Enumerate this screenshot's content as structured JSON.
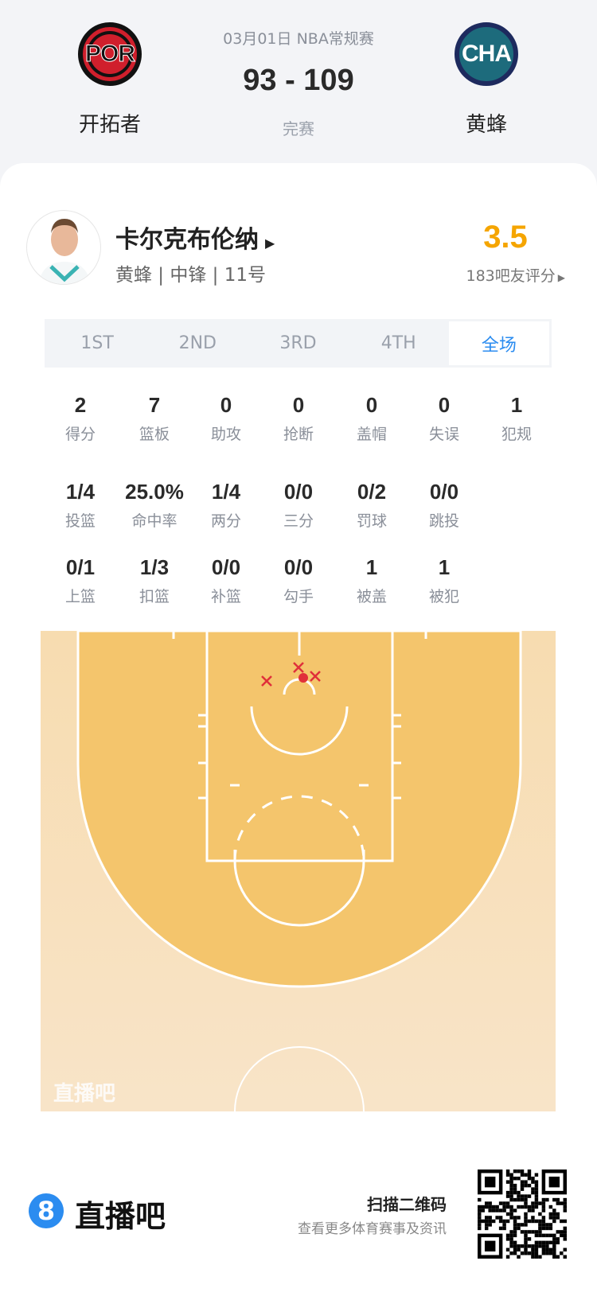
{
  "match": {
    "date_league": "03月01日 NBA常规赛",
    "score": "93 - 109",
    "status": "完赛",
    "home": {
      "abbr": "POR",
      "name": "开拓者"
    },
    "away": {
      "abbr": "CHA",
      "name": "黄蜂"
    }
  },
  "player": {
    "name": "卡尔克布伦纳",
    "info": "黄蜂 | 中锋 | 11号",
    "rating": "3.5",
    "rating_count": "183吧友评分"
  },
  "tabs": [
    {
      "label": "1ST"
    },
    {
      "label": "2ND"
    },
    {
      "label": "3RD"
    },
    {
      "label": "4TH"
    },
    {
      "label": "全场",
      "active": true
    }
  ],
  "stats": [
    [
      {
        "v": "2",
        "l": "得分"
      },
      {
        "v": "7",
        "l": "篮板"
      },
      {
        "v": "0",
        "l": "助攻"
      },
      {
        "v": "0",
        "l": "抢断"
      },
      {
        "v": "0",
        "l": "盖帽"
      },
      {
        "v": "0",
        "l": "失误"
      },
      {
        "v": "1",
        "l": "犯规"
      }
    ],
    [
      {
        "v": "1/4",
        "l": "投篮"
      },
      {
        "v": "25.0%",
        "l": "命中率"
      },
      {
        "v": "1/4",
        "l": "两分"
      },
      {
        "v": "0/0",
        "l": "三分"
      },
      {
        "v": "0/2",
        "l": "罚球"
      },
      {
        "v": "0/0",
        "l": "跳投"
      }
    ],
    [
      {
        "v": "0/1",
        "l": "上篮"
      },
      {
        "v": "1/3",
        "l": "扣篮"
      },
      {
        "v": "0/0",
        "l": "补篮"
      },
      {
        "v": "0/0",
        "l": "勾手"
      },
      {
        "v": "1",
        "l": "被盖"
      },
      {
        "v": "1",
        "l": "被犯"
      }
    ]
  ],
  "shot_chart": {
    "watermark": "直播吧",
    "shots": [
      {
        "result": "miss"
      },
      {
        "result": "miss"
      },
      {
        "result": "miss"
      },
      {
        "result": "made"
      }
    ]
  },
  "footer": {
    "brand": "直播吧",
    "brand_mark": "8",
    "scan": "扫描二维码",
    "scan_sub": "查看更多体育赛事及资讯"
  },
  "colors": {
    "accent": "#2b8cf0",
    "rating": "#f5a500",
    "miss": "#e0303a",
    "made": "#e0303a",
    "court_inner": "#f4c56c",
    "court_outer": "#f8e2c2"
  }
}
